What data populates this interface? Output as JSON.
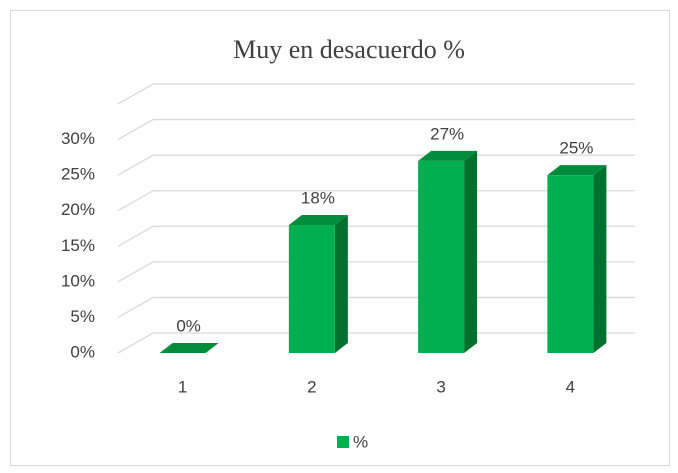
{
  "chart_data": {
    "type": "bar3d",
    "title": "Muy en desacuerdo %",
    "categories": [
      "1",
      "2",
      "3",
      "4"
    ],
    "series": [
      {
        "name": "%",
        "color": "#00b050",
        "values": [
          0,
          18,
          27,
          25
        ],
        "value_labels": [
          "0%",
          "18%",
          "27%",
          "25%"
        ]
      }
    ],
    "ylim": [
      0,
      35
    ],
    "yticks": [
      {
        "value": 0,
        "label": "0%"
      },
      {
        "value": 5,
        "label": "5%"
      },
      {
        "value": 10,
        "label": "10%"
      },
      {
        "value": 15,
        "label": "15%"
      },
      {
        "value": 20,
        "label": "20%"
      },
      {
        "value": 25,
        "label": "25%"
      },
      {
        "value": 30,
        "label": "30%"
      }
    ],
    "grid": true,
    "legend": "bottom"
  }
}
